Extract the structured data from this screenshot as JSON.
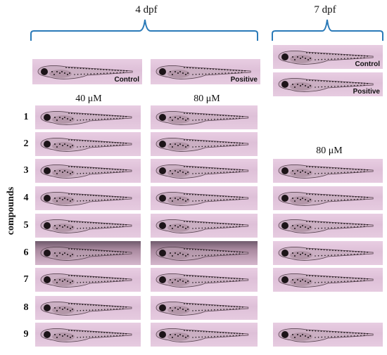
{
  "headers": {
    "day4": "4 dpf",
    "day7": "7 dpf"
  },
  "concentrations": {
    "c40": "40 μM",
    "c80_d4": "80 μM",
    "c80_d7": "80 μM"
  },
  "y_axis_label": "compounds",
  "controls": {
    "control": "Control",
    "positive": "Positive"
  },
  "rows": [
    "1",
    "2",
    "3",
    "4",
    "5",
    "6",
    "7",
    "8",
    "9"
  ],
  "colors": {
    "panel_pink": "#e2c6dc",
    "brace_blue": "#2a7ab8",
    "fish_body": "#b9a1b0",
    "fish_dark": "#1c1418"
  }
}
